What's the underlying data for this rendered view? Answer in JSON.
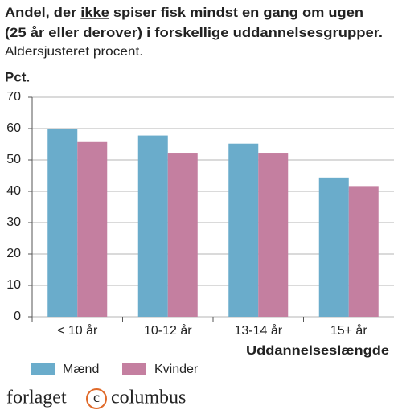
{
  "chart_data": {
    "type": "bar",
    "title": [
      [
        "Andel, der ",
        "ikke",
        " spiser fisk mindst en gang om ugen"
      ],
      [
        "(25 år eller derover) i forskellige uddannelsesgrupper."
      ]
    ],
    "subtitle": "Aldersjusteret procent.",
    "y_label": "Pct.",
    "x_label": "Uddannelseslængde",
    "categories": [
      "< 10 år",
      "10-12 år",
      "13-14 år",
      "15+ år"
    ],
    "series": [
      {
        "name": "Mænd",
        "color": "#6aaccb",
        "values": [
          60,
          57.8,
          55.2,
          44.4
        ]
      },
      {
        "name": "Kvinder",
        "color": "#c47fa0",
        "values": [
          55.7,
          52.3,
          52.3,
          41.7
        ]
      }
    ],
    "ylim": [
      0,
      70
    ],
    "yticks": [
      0,
      10,
      20,
      30,
      40,
      50,
      60,
      70
    ],
    "grid": true,
    "publisher": {
      "left": "forlaget",
      "mark": "c",
      "right": "columbus"
    }
  }
}
